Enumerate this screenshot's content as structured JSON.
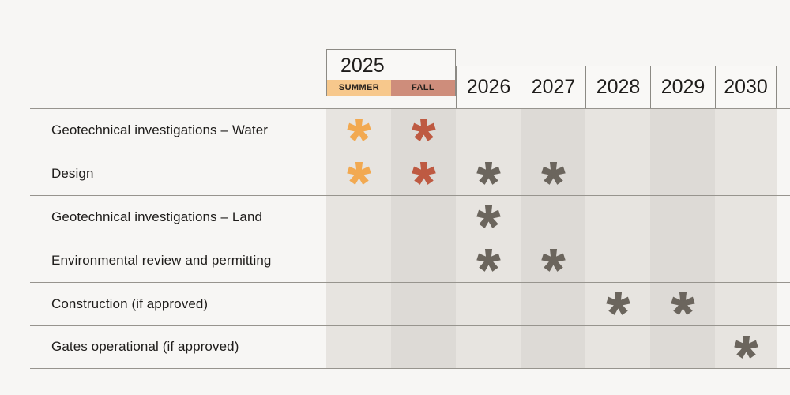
{
  "chart_data": {
    "type": "table",
    "description": "Project schedule timeline with asterisk marks showing when each activity occurs",
    "header": {
      "group_label": "2025",
      "seasons": [
        "SUMMER",
        "FALL"
      ],
      "years": [
        "2026",
        "2027",
        "2028",
        "2029",
        "2030"
      ]
    },
    "columns": [
      "2025 SUMMER",
      "2025 FALL",
      "2026",
      "2027",
      "2028",
      "2029",
      "2030"
    ],
    "rows": [
      {
        "label": "Geotechnical investigations – Water",
        "marks": [
          1,
          1,
          0,
          0,
          0,
          0,
          0
        ]
      },
      {
        "label": "Design",
        "marks": [
          1,
          1,
          1,
          1,
          0,
          0,
          0
        ]
      },
      {
        "label": "Geotechnical investigations – Land",
        "marks": [
          0,
          0,
          1,
          0,
          0,
          0,
          0
        ]
      },
      {
        "label": "Environmental review and permitting",
        "marks": [
          0,
          0,
          1,
          1,
          0,
          0,
          0
        ]
      },
      {
        "label": "Construction (if approved)",
        "marks": [
          0,
          0,
          0,
          0,
          1,
          1,
          0
        ]
      },
      {
        "label": "Gates operational (if approved)",
        "marks": [
          0,
          0,
          0,
          0,
          0,
          0,
          1
        ]
      }
    ],
    "mark_symbol": "asterisk",
    "mark_colors_by_column": [
      "#F2A951",
      "#BE5A42",
      "#6B655D",
      "#6B655D",
      "#6B655D",
      "#6B655D",
      "#6B655D"
    ],
    "legend_position": "none",
    "grid": "alternating-column-shading"
  },
  "colors": {
    "page_bg": "#F7F6F4",
    "header_cell_bg": "#F9F8F6",
    "border": "#8C8A84",
    "grid_line": "#97948E",
    "text": "#1E1C1A",
    "column_light": "#E7E4E0",
    "column_dark": "#DDDAD6",
    "summer_band": "#F7C88C",
    "fall_band": "#CE8D7B",
    "asterisk_summer": "#F2A951",
    "asterisk_fall": "#BE5A42",
    "asterisk_year": "#6B655D"
  }
}
